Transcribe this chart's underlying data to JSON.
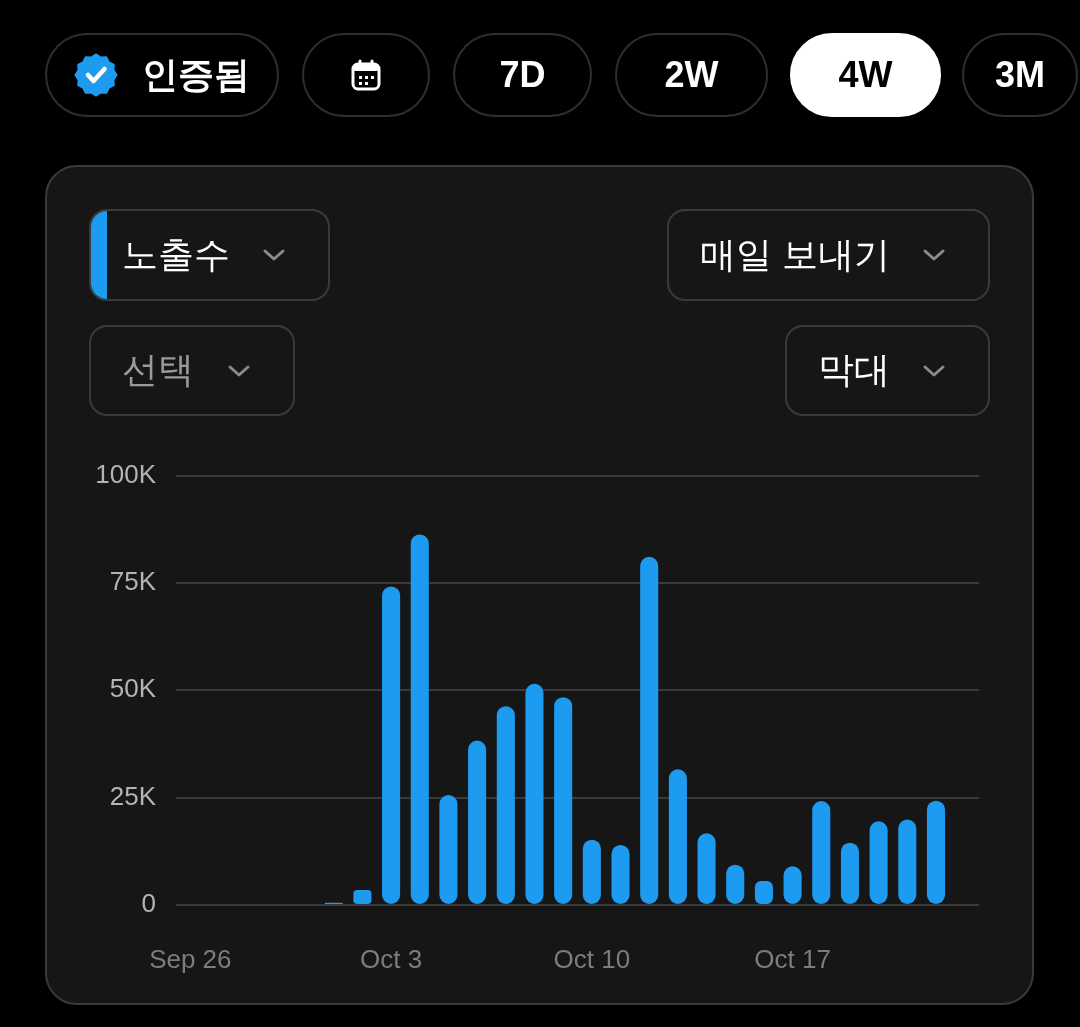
{
  "chart_data": {
    "type": "bar",
    "categories": [
      "Sep 26",
      null,
      null,
      null,
      null,
      null,
      null,
      "Oct 3",
      null,
      null,
      null,
      null,
      null,
      null,
      "Oct 10",
      null,
      null,
      null,
      null,
      null,
      null,
      "Oct 17",
      null,
      null,
      null,
      null,
      null,
      null
    ],
    "series": [
      {
        "name": "노출수",
        "color": "#1d9bf0",
        "values": [
          null,
          null,
          null,
          null,
          null,
          500,
          3500,
          74200,
          86300,
          25600,
          38300,
          46300,
          51500,
          48400,
          15200,
          14000,
          81100,
          31600,
          16700,
          9400,
          5600,
          9000,
          24200,
          14500,
          19500,
          19900,
          24300,
          null
        ]
      }
    ],
    "ylim": [
      0,
      100000
    ],
    "yticks": [
      0,
      {
        "value": 25000,
        "label": "25K"
      },
      {
        "value": 50000,
        "label": "50K"
      },
      {
        "value": 75000,
        "label": "75K"
      },
      {
        "value": 100000,
        "label": "100K"
      }
    ],
    "grid": "y",
    "legend": "top left",
    "annotations": [
      "인증됨",
      "7D",
      "2W",
      "4W",
      "3M",
      "매일 보내기",
      "선택",
      "막대"
    ]
  }
}
